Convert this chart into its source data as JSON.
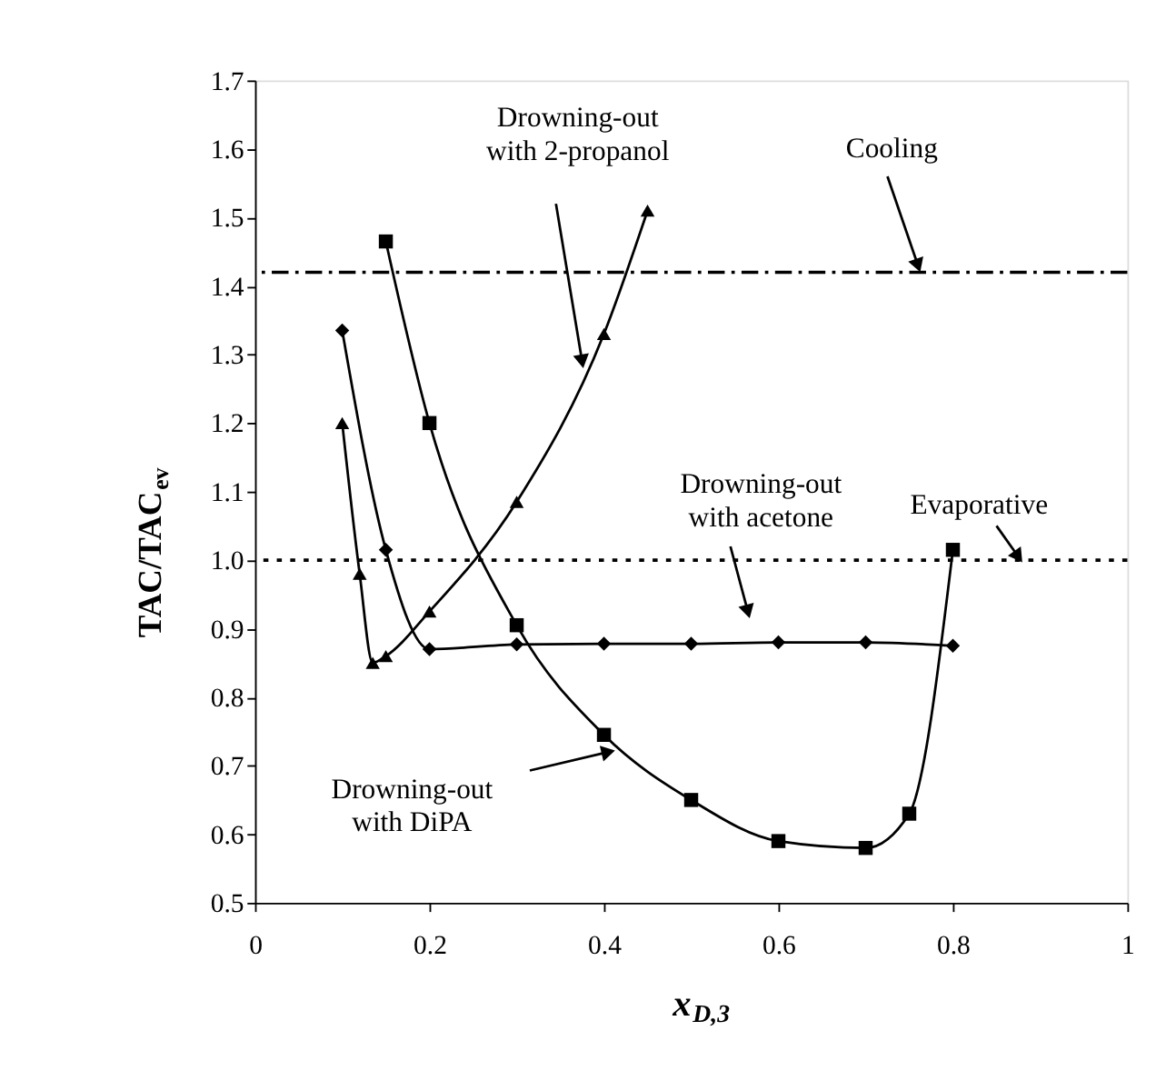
{
  "chart_data": {
    "type": "line",
    "xlabel": "x$_{D,3}$",
    "ylabel": "TAC/TAC$_{ev}$",
    "xlim": [
      0,
      1
    ],
    "xticks": [
      0,
      0.2,
      0.4,
      0.6,
      0.8,
      1
    ],
    "ylim": [
      0.5,
      1.7
    ],
    "yticks": [
      0.5,
      0.6,
      0.7,
      0.8,
      0.9,
      {
        "value": 1,
        "label": "1.0"
      },
      1.1,
      1.2,
      1.3,
      1.4,
      1.5,
      1.6,
      1.7
    ],
    "grid": false,
    "line_style": "solid",
    "annotations": [
      "Drowning-out with 2-propanol",
      {
        "text": "Drowning-out with acetone",
        "x": 0.565,
        "y": 0.925
      },
      "Drowning-out with DiPA"
    ],
    "series": [
      {
        "color": "#000000",
        "marker": "triangle",
        "x": [
          0.1,
          0.12,
          0.135,
          0.15,
          0.2,
          0.3,
          0.4,
          0.45
        ],
        "values": [
          1.2,
          0.98,
          0.85,
          0.86,
          0.925,
          1.085,
          1.33,
          1.51
        ]
      },
      {
        "color": "#000000",
        "marker": "diamond",
        "x": [
          0.1,
          0.15,
          0.2,
          0.3,
          0.4,
          0.5,
          0.6,
          0.7,
          0.8
        ],
        "values": [
          1.335,
          1.015,
          0.87,
          0.877,
          0.878,
          0.878,
          0.88,
          0.88,
          0.875
        ]
      },
      {
        "color": "#000000",
        "marker": "square",
        "x": [
          0.15,
          0.2,
          0.3,
          0.4,
          0.5,
          0.6,
          0.7,
          0.75,
          0.8
        ],
        "values": [
          1.465,
          1.2,
          0.905,
          0.745,
          0.65,
          0.59,
          0.58,
          0.63,
          1.015
        ]
      }
    ],
    "ref_lines": [
      {
        "axis": "y",
        "value": 1.42,
        "label": "Cooling",
        "color": "#000000",
        "line_style": "dashed"
      },
      {
        "axis": "y",
        "value": 1.0,
        "label": "Evaporative",
        "color": "#000000",
        "line_style": "dotted"
      }
    ]
  }
}
